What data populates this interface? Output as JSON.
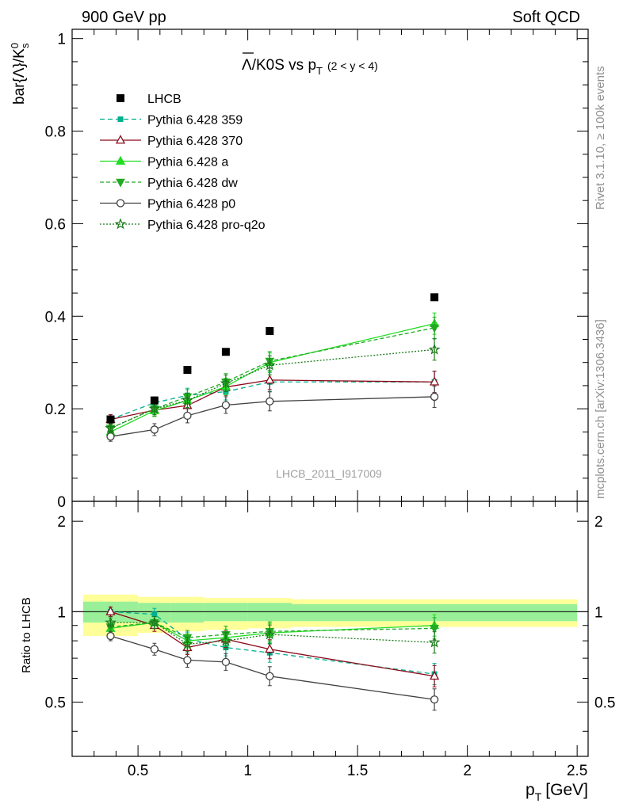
{
  "header": {
    "left": "900 GeV pp",
    "right": "Soft QCD"
  },
  "side_labels": {
    "rivet": "Rivet 3.1.10, ≥ 100k events",
    "mcplots": "mcplots.cern.ch [arXiv:1306.3436]"
  },
  "chart_data": [
    {
      "type": "line",
      "title_main": "Λ/K0S vs p",
      "title_sub": "T",
      "title_range": "(2 < y < 4)",
      "ylabel_main": "bar{Λ}/K",
      "ylabel_sup": "0",
      "ylabel_sub": "s",
      "watermark": "LHCB_2011_I917009",
      "xlim": [
        0.2,
        2.55
      ],
      "ylim": [
        0,
        1.02
      ],
      "yticks": [
        {
          "v": 0,
          "label": "0"
        },
        {
          "v": 0.2,
          "label": "0.2"
        },
        {
          "v": 0.4,
          "label": "0.4"
        },
        {
          "v": 0.6,
          "label": "0.6"
        },
        {
          "v": 0.8,
          "label": "0.8"
        },
        {
          "v": 1,
          "label": "1"
        }
      ],
      "x": [
        0.375,
        0.575,
        0.725,
        0.9,
        1.1,
        1.85
      ],
      "data": {
        "name": "LHCB",
        "values": [
          0.177,
          0.218,
          0.284,
          0.323,
          0.368,
          0.441
        ]
      },
      "series": [
        {
          "name": "Pythia 6.428 359",
          "color": "#00b08f",
          "dash": "6,4",
          "marker": "square",
          "values": [
            0.177,
            0.213,
            0.229,
            0.237,
            0.258,
            0.258
          ]
        },
        {
          "name": "Pythia 6.428 370",
          "color": "#8b0a1a",
          "dash": "",
          "marker": "triangle-open",
          "values": [
            0.177,
            0.197,
            0.207,
            0.247,
            0.262,
            0.258
          ]
        },
        {
          "name": "Pythia 6.428 a",
          "color": "#22dd22",
          "dash": "",
          "marker": "triangle",
          "values": [
            0.15,
            0.196,
            0.218,
            0.248,
            0.3,
            0.384
          ]
        },
        {
          "name": "Pythia 6.428 dw",
          "color": "#22aa22",
          "dash": "5,3",
          "marker": "triangle-down",
          "values": [
            0.158,
            0.2,
            0.226,
            0.258,
            0.303,
            0.375
          ]
        },
        {
          "name": "Pythia 6.428 p0",
          "color": "#404040",
          "dash": "",
          "marker": "circle-open",
          "values": [
            0.14,
            0.155,
            0.185,
            0.208,
            0.216,
            0.226
          ]
        },
        {
          "name": "Pythia 6.428 pro-q2o",
          "color": "#1a7a1a",
          "dash": "2,2",
          "marker": "star-open",
          "values": [
            0.158,
            0.2,
            0.218,
            0.255,
            0.294,
            0.328
          ]
        }
      ]
    },
    {
      "type": "line",
      "ylabel": "Ratio to LHCB",
      "xlabel_main": "p",
      "xlabel_sub": "T",
      "xlabel_unit": "[GeV]",
      "xlim": [
        0.2,
        2.55
      ],
      "ylim": [
        0.33,
        2.33
      ],
      "xticks": [
        {
          "v": 0.5,
          "label": "0.5"
        },
        {
          "v": 1,
          "label": "1"
        },
        {
          "v": 1.5,
          "label": "1.5"
        },
        {
          "v": 2,
          "label": "2"
        },
        {
          "v": 2.5,
          "label": "2.5"
        }
      ],
      "yticks": [
        {
          "v": 0.5,
          "label": "0.5"
        },
        {
          "v": 1,
          "label": "1"
        },
        {
          "v": 2,
          "label": "2"
        }
      ],
      "bins": [
        {
          "lo": 0.25,
          "hi": 0.5,
          "stat_lo": 0.92,
          "stat_hi": 1.08,
          "tot_lo": 0.83,
          "tot_hi": 1.14
        },
        {
          "lo": 0.5,
          "hi": 0.65,
          "stat_lo": 0.92,
          "stat_hi": 1.07,
          "tot_lo": 0.85,
          "tot_hi": 1.12
        },
        {
          "lo": 0.65,
          "hi": 0.8,
          "stat_lo": 0.92,
          "stat_hi": 1.07,
          "tot_lo": 0.86,
          "tot_hi": 1.12
        },
        {
          "lo": 0.8,
          "hi": 1.0,
          "stat_lo": 0.93,
          "stat_hi": 1.07,
          "tot_lo": 0.87,
          "tot_hi": 1.11
        },
        {
          "lo": 1.0,
          "hi": 1.2,
          "stat_lo": 0.93,
          "stat_hi": 1.07,
          "tot_lo": 0.88,
          "tot_hi": 1.11
        },
        {
          "lo": 1.2,
          "hi": 2.5,
          "stat_lo": 0.93,
          "stat_hi": 1.06,
          "tot_lo": 0.89,
          "tot_hi": 1.1
        }
      ],
      "series_ratios": [
        [
          1.0,
          0.98,
          0.81,
          0.76,
          0.73,
          0.62
        ],
        [
          1.0,
          0.9,
          0.76,
          0.81,
          0.75,
          0.61
        ],
        [
          0.88,
          0.92,
          0.8,
          0.82,
          0.85,
          0.9
        ],
        [
          0.89,
          0.92,
          0.82,
          0.84,
          0.86,
          0.88
        ],
        [
          0.83,
          0.75,
          0.69,
          0.68,
          0.61,
          0.51
        ],
        [
          0.92,
          0.92,
          0.78,
          0.8,
          0.84,
          0.79
        ]
      ]
    }
  ]
}
